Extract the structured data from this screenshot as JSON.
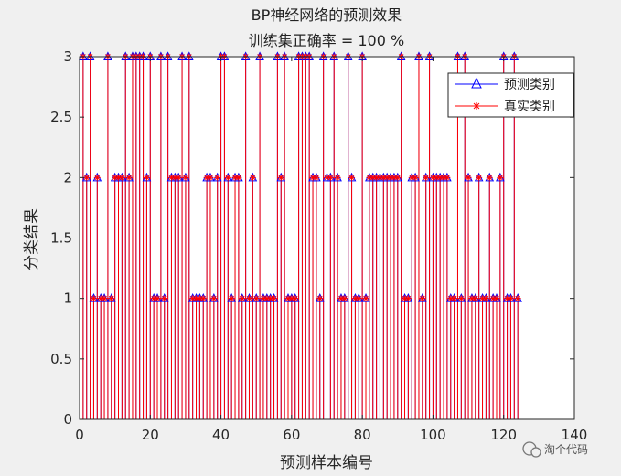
{
  "watermark": {
    "text": "淘个代码"
  },
  "chart_data": {
    "type": "stem",
    "title": "BP神经网络的预测效果",
    "subtitle": "训练集正确率 = 100 %",
    "xlabel": "预测样本编号",
    "ylabel": "分类结果",
    "xlim": [
      0,
      140
    ],
    "ylim": [
      0,
      3
    ],
    "xticks": [
      0,
      20,
      40,
      60,
      80,
      100,
      120,
      140
    ],
    "yticks": [
      0,
      0.5,
      1,
      1.5,
      2,
      2.5,
      3
    ],
    "grid": false,
    "legend_position": "top-right",
    "series": [
      {
        "name": "预测类别",
        "color": "#0000ff",
        "marker": "triangle",
        "values": [
          3,
          2,
          3,
          1,
          2,
          1,
          1,
          3,
          1,
          2,
          2,
          2,
          3,
          2,
          3,
          3,
          3,
          3,
          2,
          3,
          1,
          1,
          3,
          1,
          3,
          2,
          2,
          2,
          3,
          2,
          3,
          1,
          1,
          1,
          1,
          2,
          2,
          1,
          2,
          3,
          3,
          2,
          1,
          2,
          2,
          1,
          3,
          1,
          2,
          1,
          3,
          1,
          1,
          1,
          1,
          3,
          2,
          3,
          1,
          1,
          1,
          3,
          3,
          3,
          3,
          2,
          2,
          1,
          3,
          2,
          2,
          3,
          2,
          1,
          1,
          3,
          2,
          1,
          1,
          3,
          1,
          2,
          2,
          2,
          2,
          2,
          2,
          2,
          2,
          2,
          3,
          1,
          1,
          2,
          2,
          3,
          1,
          2,
          3,
          2,
          2,
          2,
          2,
          2,
          1,
          1,
          3,
          1,
          3,
          2,
          1,
          1,
          2,
          1,
          1,
          2,
          1,
          1,
          2,
          3,
          1,
          1,
          3,
          1
        ]
      },
      {
        "name": "真实类别",
        "color": "#ff0000",
        "marker": "asterisk",
        "values": [
          3,
          2,
          3,
          1,
          2,
          1,
          1,
          3,
          1,
          2,
          2,
          2,
          3,
          2,
          3,
          3,
          3,
          3,
          2,
          3,
          1,
          1,
          3,
          1,
          3,
          2,
          2,
          2,
          3,
          2,
          3,
          1,
          1,
          1,
          1,
          2,
          2,
          1,
          2,
          3,
          3,
          2,
          1,
          2,
          2,
          1,
          3,
          1,
          2,
          1,
          3,
          1,
          1,
          1,
          1,
          3,
          2,
          3,
          1,
          1,
          1,
          3,
          3,
          3,
          3,
          2,
          2,
          1,
          3,
          2,
          2,
          3,
          2,
          1,
          1,
          3,
          2,
          1,
          1,
          3,
          1,
          2,
          2,
          2,
          2,
          2,
          2,
          2,
          2,
          2,
          3,
          1,
          1,
          2,
          2,
          3,
          1,
          2,
          3,
          2,
          2,
          2,
          2,
          2,
          1,
          1,
          3,
          1,
          3,
          2,
          1,
          1,
          2,
          1,
          1,
          2,
          1,
          1,
          2,
          3,
          1,
          1,
          3,
          1
        ]
      }
    ]
  }
}
